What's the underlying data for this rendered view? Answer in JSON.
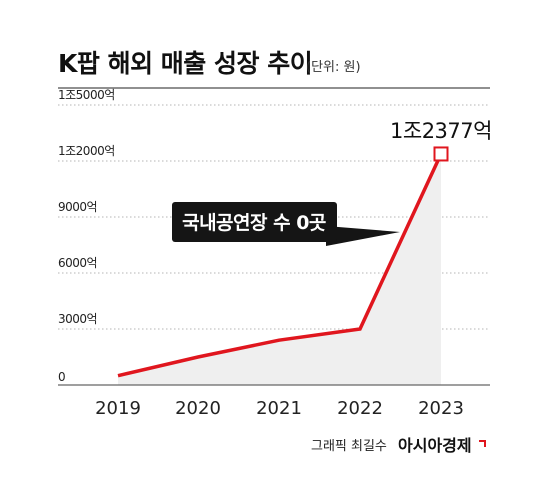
{
  "header": {
    "title": "K팝 해외 매출 성장 추이",
    "unit": "(단위: 원)"
  },
  "chart_data": {
    "type": "line",
    "title": "K팝 해외 매출 성장 추이",
    "subtitle": "(단위: 원)",
    "xlabel": "",
    "ylabel": "",
    "categories": [
      "2019",
      "2020",
      "2021",
      "2022",
      "2023"
    ],
    "y_ticks": [
      {
        "value": 0,
        "label": "0"
      },
      {
        "value": 3000,
        "label": "3000억"
      },
      {
        "value": 6000,
        "label": "6000억"
      },
      {
        "value": 9000,
        "label": "9000억"
      },
      {
        "value": 12000,
        "label": "1조2000억"
      },
      {
        "value": 15000,
        "label": "1조5000억"
      }
    ],
    "ylim": [
      0,
      15000
    ],
    "series": [
      {
        "values": [
          500,
          1500,
          2400,
          3000,
          12377
        ],
        "color": "#e0161e"
      }
    ],
    "highlight_label": "1조2377억",
    "callout": "국내공연장 수 0곳",
    "grid": "horizontal dotted",
    "area_fill": "#efefef"
  },
  "footer": {
    "credit": "그래픽 최길수",
    "brand": "아시아경제"
  }
}
